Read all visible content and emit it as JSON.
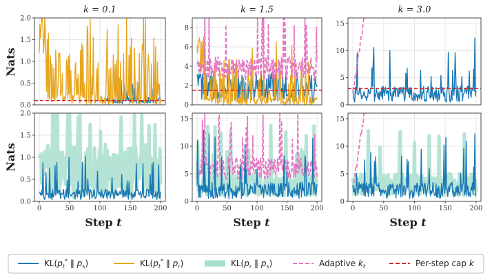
{
  "figure": {
    "ylabel": "Nats",
    "xlabel": "Step",
    "xlabel_var": "t"
  },
  "legend": [
    {
      "key": "kl_star_s",
      "label": "KL(p_t* ‖ p_s)",
      "color": "#1a78b4",
      "style": "solid"
    },
    {
      "key": "kl_star_r",
      "label": "KL(p_t* ‖ p_r)",
      "color": "#e8a51e",
      "style": "solid"
    },
    {
      "key": "kl_r_s",
      "label": "KL(p_r ‖ p_s)",
      "color": "#a8dfcf",
      "style": "thick"
    },
    {
      "key": "adaptive",
      "label": "Adaptive k_t",
      "color": "#e377c2",
      "style": "dashed"
    },
    {
      "key": "cap",
      "label": "Per-step cap k",
      "color": "#d62728",
      "style": "dashed"
    }
  ],
  "chart_data": [
    {
      "type": "line",
      "title": "k = 0.1",
      "row": 0,
      "col": 0,
      "k": 0.1,
      "ylim": [
        0,
        2.0
      ],
      "yticks": [
        "0.0",
        "0.5",
        "1.0",
        "1.5",
        "2.0"
      ],
      "xlim": [
        -8,
        208
      ],
      "xticks": [],
      "series_keys": [
        "kl_star_s",
        "kl_star_r",
        "cap"
      ],
      "grid": true
    },
    {
      "type": "line",
      "title": "k = 1.5",
      "row": 0,
      "col": 1,
      "k": 1.5,
      "ylim": [
        0,
        9
      ],
      "yticks": [
        "0",
        "2",
        "4",
        "6",
        "8"
      ],
      "xlim": [
        -8,
        208
      ],
      "xticks": [],
      "series_keys": [
        "kl_star_s",
        "kl_star_r",
        "adaptive",
        "cap"
      ],
      "grid": true
    },
    {
      "type": "line",
      "title": "k = 3.0",
      "row": 0,
      "col": 2,
      "k": 3.0,
      "ylim": [
        0,
        16
      ],
      "yticks": [
        "0",
        "5",
        "10",
        "15"
      ],
      "xlim": [
        -8,
        208
      ],
      "xticks": [],
      "series_keys": [
        "kl_star_s",
        "adaptive",
        "cap"
      ],
      "grid": true
    },
    {
      "type": "line",
      "title": "",
      "row": 1,
      "col": 0,
      "ylim": [
        0,
        2.0
      ],
      "yticks": [
        "0.0",
        "0.5",
        "1.0",
        "1.5",
        "2.0"
      ],
      "xlim": [
        -8,
        208
      ],
      "xticks": [
        "0",
        "50",
        "100",
        "150",
        "200"
      ],
      "series_keys": [
        "kl_r_s",
        "kl_star_s"
      ],
      "grid": true
    },
    {
      "type": "line",
      "title": "",
      "row": 1,
      "col": 1,
      "ylim": [
        0,
        16
      ],
      "yticks": [
        "0",
        "5",
        "10",
        "15"
      ],
      "xlim": [
        -8,
        208
      ],
      "xticks": [
        "0",
        "50",
        "100",
        "150",
        "200"
      ],
      "series_keys": [
        "kl_r_s",
        "adaptive",
        "kl_star_s"
      ],
      "grid": true
    },
    {
      "type": "line",
      "title": "",
      "row": 1,
      "col": 2,
      "ylim": [
        0,
        16
      ],
      "yticks": [
        "0",
        "5",
        "10",
        "15"
      ],
      "xlim": [
        -8,
        208
      ],
      "xticks": [
        "0",
        "50",
        "100",
        "150",
        "200"
      ],
      "series_keys": [
        "kl_r_s",
        "adaptive",
        "kl_star_s"
      ],
      "grid": true
    }
  ]
}
